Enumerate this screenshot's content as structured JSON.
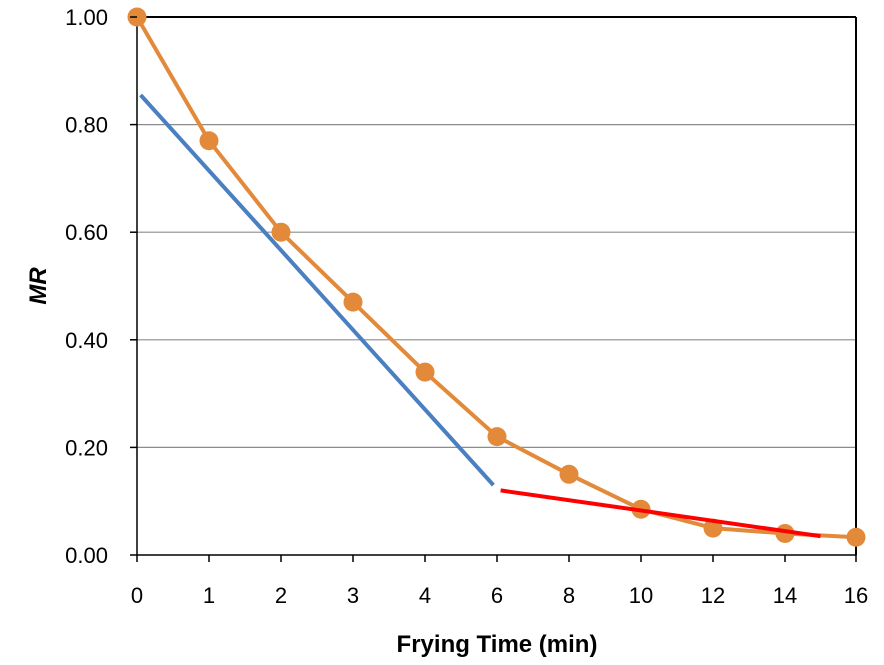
{
  "chart_data": {
    "type": "line",
    "title": "",
    "xlabel": "Frying Time (min)",
    "ylabel": "MR",
    "x_ticks": [
      "0",
      "1",
      "2",
      "3",
      "4",
      "6",
      "8",
      "10",
      "12",
      "14",
      "16"
    ],
    "y_ticks": [
      "0.00",
      "0.20",
      "0.40",
      "0.60",
      "0.80",
      "1.00"
    ],
    "ylim": [
      0,
      1
    ],
    "grid": "horizontal",
    "legend": "none",
    "series": [
      {
        "style": "line-with-markers",
        "color": "#E38A3A",
        "x": [
          0,
          1,
          2,
          3,
          4,
          6,
          8,
          10,
          12,
          14,
          16
        ],
        "y": [
          1.0,
          0.77,
          0.6,
          0.47,
          0.34,
          0.22,
          0.15,
          0.085,
          0.05,
          0.04,
          0.033
        ]
      },
      {
        "style": "line",
        "color": "#4A7FC1",
        "x": [
          0.05,
          5.9
        ],
        "y": [
          0.855,
          0.13
        ]
      },
      {
        "style": "line",
        "color": "#FF0000",
        "x": [
          6.1,
          15.0
        ],
        "y": [
          0.12,
          0.035
        ]
      }
    ]
  }
}
